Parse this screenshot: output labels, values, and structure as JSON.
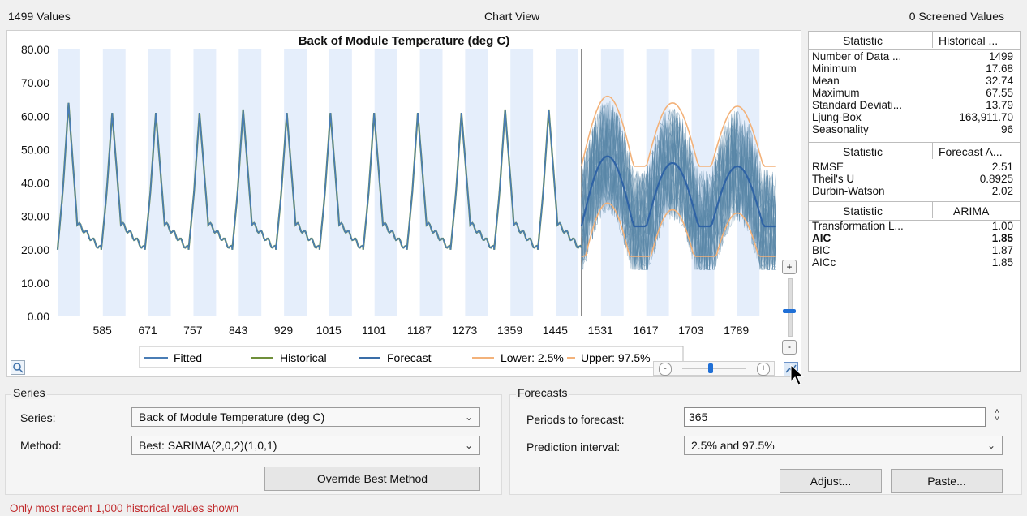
{
  "header": {
    "values_count": "1499 Values",
    "title": "Chart View",
    "screened": "0 Screened Values"
  },
  "chart_data": {
    "type": "line",
    "title": "Back of Module Temperature (deg C)",
    "ylim": [
      0,
      80
    ],
    "y_ticks": [
      "80.00",
      "70.00",
      "60.00",
      "50.00",
      "40.00",
      "30.00",
      "20.00",
      "10.00",
      "0.00"
    ],
    "x_ticks": [
      "585",
      "671",
      "757",
      "843",
      "929",
      "1015",
      "1101",
      "1187",
      "1273",
      "1359",
      "1445",
      "1531",
      "1617",
      "1703",
      "1789"
    ],
    "xlim": [
      500,
      1865
    ],
    "forecast_start": 1495,
    "series": [
      {
        "name": "Fitted",
        "color": "#4a7db5"
      },
      {
        "name": "Historical",
        "color": "#6f8f3a"
      },
      {
        "name": "Forecast",
        "color": "#3a6ea8"
      },
      {
        "name": "Lower: 2.5%",
        "color": "#f3b27a"
      },
      {
        "name": "Upper: 97.5%",
        "color": "#f3b27a"
      }
    ],
    "cycle_peaks": [
      64,
      61,
      61,
      61,
      62,
      61,
      61,
      61,
      61,
      61,
      62,
      62
    ],
    "cycle_base": 20,
    "forecast_mean_peaks": [
      48,
      46,
      45
    ],
    "forecast_mean_base": 27,
    "band_lower_base": 18,
    "band_upper_peak": 66,
    "grid": false,
    "legend_position": "bottom"
  },
  "stats": {
    "table1": {
      "col1": "Statistic",
      "col2": "Historical ...",
      "rows": [
        {
          "label": "Number of Data ...",
          "value": "1499"
        },
        {
          "label": "Minimum",
          "value": "17.68"
        },
        {
          "label": "Mean",
          "value": "32.74"
        },
        {
          "label": "Maximum",
          "value": "67.55"
        },
        {
          "label": "Standard Deviati...",
          "value": "13.79"
        },
        {
          "label": "Ljung-Box",
          "value": "163,911.70"
        },
        {
          "label": "Seasonality",
          "value": "96"
        }
      ]
    },
    "table2": {
      "col1": "Statistic",
      "col2": "Forecast A...",
      "rows": [
        {
          "label": "RMSE",
          "value": "2.51"
        },
        {
          "label": "Theil's U",
          "value": "0.8925"
        },
        {
          "label": "Durbin-Watson",
          "value": "2.02"
        }
      ]
    },
    "table3": {
      "col1": "Statistic",
      "col2": "ARIMA",
      "rows": [
        {
          "label": "Transformation L...",
          "value": "1.00"
        },
        {
          "label": "AIC",
          "value": "1.85",
          "bold": true
        },
        {
          "label": "BIC",
          "value": "1.87"
        },
        {
          "label": "AICc",
          "value": "1.85"
        }
      ]
    }
  },
  "series_group": {
    "title": "Series",
    "series_label": "Series:",
    "series_value": "Back of Module Temperature (deg C)",
    "method_label": "Method:",
    "method_value": "Best: SARIMA(2,0,2)(1,0,1)",
    "override_button": "Override Best Method"
  },
  "forecasts_group": {
    "title": "Forecasts",
    "periods_label": "Periods to forecast:",
    "periods_value": "365",
    "interval_label": "Prediction interval:",
    "interval_value": "2.5% and 97.5%",
    "adjust_button": "Adjust...",
    "paste_button": "Paste..."
  },
  "footer": {
    "note": "Only most recent 1,000 historical values shown"
  },
  "zoom": {
    "vertical_level": 0.5,
    "horizontal_level": 0.45
  }
}
